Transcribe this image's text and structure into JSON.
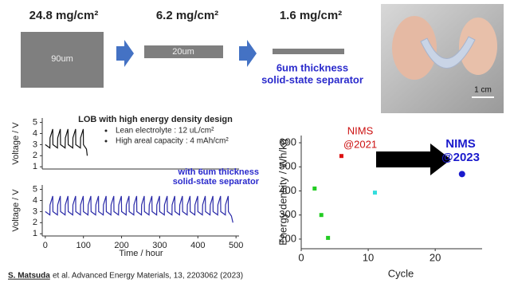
{
  "slide": {
    "loading_1": "24.8 mg/cm²",
    "thickness_1": "90um",
    "loading_2": "6.2 mg/cm²",
    "thickness_2": "20um",
    "loading_3": "1.6 mg/cm²",
    "separator_label": [
      "6um thickness",
      "solid-state separator"
    ],
    "photo_scale_label": "1 cm",
    "citation_author": "S. Matsuda",
    "citation_rest": " et al. Advanced Energy Materials, 13, 2203062 (2023)"
  },
  "chart_data": [
    {
      "type": "line",
      "ylabel": "Voltage / V",
      "annotation": "LOB with high energy density design",
      "notes": [
        "Lean electrolyte : 12 uL/cm²",
        "High areal capacity : 4 mAh/cm²"
      ],
      "x": [
        0,
        12,
        12.5,
        19.5,
        20,
        32,
        32.5,
        39.5,
        40,
        52,
        52.5,
        59.5,
        60,
        72,
        72.5,
        79.5,
        80,
        92,
        92.5,
        99.5,
        100,
        108,
        110
      ],
      "series": [
        {
          "color": "#111111",
          "values": [
            3,
            2.7,
            3.6,
            4.4,
            3,
            2.7,
            3.6,
            4.4,
            3,
            2.7,
            3.6,
            4.4,
            3,
            2.7,
            3.6,
            4.4,
            3,
            2.7,
            3.6,
            4.4,
            3,
            2.6,
            2
          ]
        }
      ],
      "xlim": [
        -8,
        508
      ],
      "ylim": [
        0.8,
        5.4
      ],
      "yticks": [
        1,
        2,
        3,
        4,
        5
      ]
    },
    {
      "type": "line",
      "ylabel": "Voltage / V",
      "xlabel": "Time / hour",
      "annotation_lines": [
        "with 6um thickness",
        "solid-state separator"
      ],
      "annotation_color": "#2a2acc",
      "x": [
        0,
        12,
        12.5,
        19.5,
        20,
        32,
        32.5,
        39.5,
        40,
        52,
        52.5,
        59.5,
        60,
        72,
        72.5,
        79.5,
        80,
        92,
        92.5,
        99.5,
        100,
        112,
        112.5,
        119.5,
        120,
        132,
        132.5,
        139.5,
        140,
        152,
        152.5,
        159.5,
        160,
        172,
        172.5,
        179.5,
        180,
        192,
        192.5,
        199.5,
        200,
        212,
        212.5,
        219.5,
        220,
        232,
        232.5,
        239.5,
        240,
        252,
        252.5,
        259.5,
        260,
        272,
        272.5,
        279.5,
        280,
        292,
        292.5,
        299.5,
        300,
        312,
        312.5,
        319.5,
        320,
        332,
        332.5,
        339.5,
        340,
        352,
        352.5,
        359.5,
        360,
        372,
        372.5,
        379.5,
        380,
        392,
        392.5,
        399.5,
        400,
        412,
        412.5,
        419.5,
        420,
        432,
        432.5,
        439.5,
        440,
        452,
        452.5,
        459.5,
        460,
        472,
        472.5,
        479.5,
        480,
        488,
        492
      ],
      "series": [
        {
          "color": "#2a2aa8",
          "values": [
            3,
            2.7,
            3.6,
            4.4,
            3,
            2.7,
            3.6,
            4.4,
            3,
            2.7,
            3.6,
            4.4,
            3,
            2.7,
            3.6,
            4.4,
            3,
            2.7,
            3.6,
            4.4,
            3,
            2.7,
            3.6,
            4.4,
            3,
            2.7,
            3.6,
            4.4,
            3,
            2.7,
            3.6,
            4.4,
            3,
            2.7,
            3.6,
            4.4,
            3,
            2.7,
            3.6,
            4.4,
            3,
            2.7,
            3.6,
            4.4,
            3,
            2.7,
            3.6,
            4.4,
            3,
            2.7,
            3.6,
            4.4,
            3,
            2.7,
            3.6,
            4.4,
            3,
            2.7,
            3.6,
            4.4,
            3,
            2.7,
            3.6,
            4.4,
            3,
            2.7,
            3.6,
            4.4,
            3,
            2.7,
            3.6,
            4.4,
            3,
            2.7,
            3.6,
            4.4,
            3,
            2.7,
            3.6,
            4.4,
            3,
            2.7,
            3.6,
            4.4,
            3,
            2.7,
            3.6,
            4.4,
            3,
            2.7,
            3.6,
            4.4,
            3,
            2.7,
            3.6,
            4.4,
            3,
            2.6,
            2
          ]
        }
      ],
      "xlim": [
        -8,
        508
      ],
      "ylim": [
        0.8,
        5.4
      ],
      "xticks": [
        0,
        100,
        200,
        300,
        400,
        500
      ],
      "yticks": [
        1,
        2,
        3,
        4,
        5
      ]
    },
    {
      "type": "scatter",
      "ylabel": "Energy density / Wh/kg",
      "xlabel": "Cycle",
      "annotations": [
        {
          "lines": [
            "NIMS",
            "@2021"
          ],
          "color": "#cc1111"
        },
        {
          "lines": [
            "NIMS",
            "@2023"
          ],
          "color": "#1a1acc"
        }
      ],
      "series": [
        {
          "color": "#22cc22",
          "marker": "square",
          "x": [
            2,
            3,
            4
          ],
          "values": [
            410,
            300,
            205
          ]
        },
        {
          "color": "#dd1111",
          "marker": "square",
          "x": [
            6
          ],
          "values": [
            545
          ]
        },
        {
          "color": "#33dddd",
          "marker": "square",
          "x": [
            11
          ],
          "values": [
            393
          ]
        },
        {
          "color": "#1a1acc",
          "marker": "circle",
          "x": [
            24
          ],
          "values": [
            470
          ]
        }
      ],
      "xlim": [
        0,
        27
      ],
      "ylim": [
        160,
        630
      ],
      "xticks": [
        0,
        10,
        20
      ],
      "yticks": [
        200,
        300,
        400,
        500,
        600
      ]
    }
  ]
}
